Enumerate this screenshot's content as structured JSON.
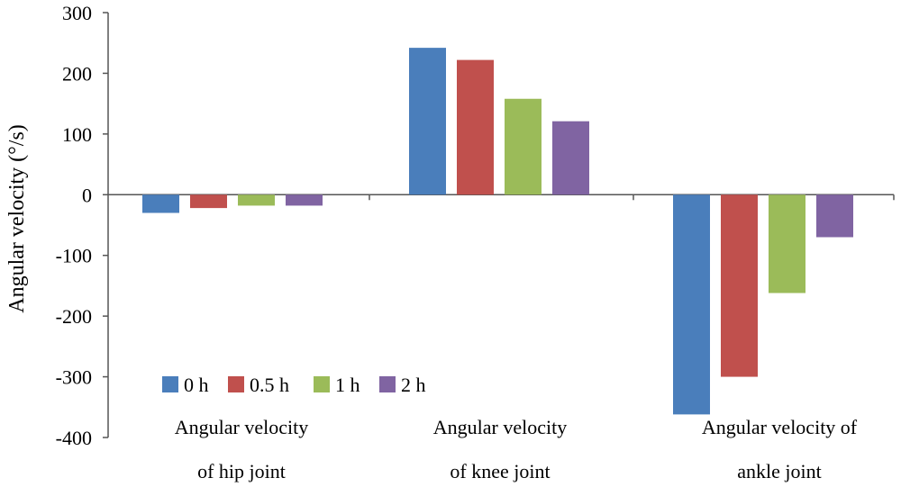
{
  "chart_data": {
    "type": "bar",
    "title": "",
    "xlabel": "",
    "ylabel": "Angular velocity (°/s)",
    "ylim": [
      -400,
      300
    ],
    "yticks": [
      300,
      200,
      100,
      0,
      -100,
      -200,
      -300,
      -400
    ],
    "ytick_labels": [
      "300",
      "200",
      "100",
      "0",
      "-100",
      "-200",
      "-300",
      "-400"
    ],
    "categories": [
      {
        "line1": "Angular velocity",
        "line2": "of hip joint"
      },
      {
        "line1": "Angular velocity",
        "line2": "of knee joint"
      },
      {
        "line1": "Angular velocity of",
        "line2": "ankle joint"
      }
    ],
    "series": [
      {
        "name": "0 h",
        "color": "#4a7ebb",
        "values": [
          -30,
          242,
          -362
        ]
      },
      {
        "name": "0.5 h",
        "color": "#c0504d",
        "values": [
          -22,
          222,
          -300
        ]
      },
      {
        "name": "1 h",
        "color": "#9bbb59",
        "values": [
          -18,
          158,
          -162
        ]
      },
      {
        "name": "2 h",
        "color": "#8064a2",
        "values": [
          -18,
          121,
          -70
        ]
      }
    ],
    "legend_position": "bottom-left",
    "grid": false
  }
}
